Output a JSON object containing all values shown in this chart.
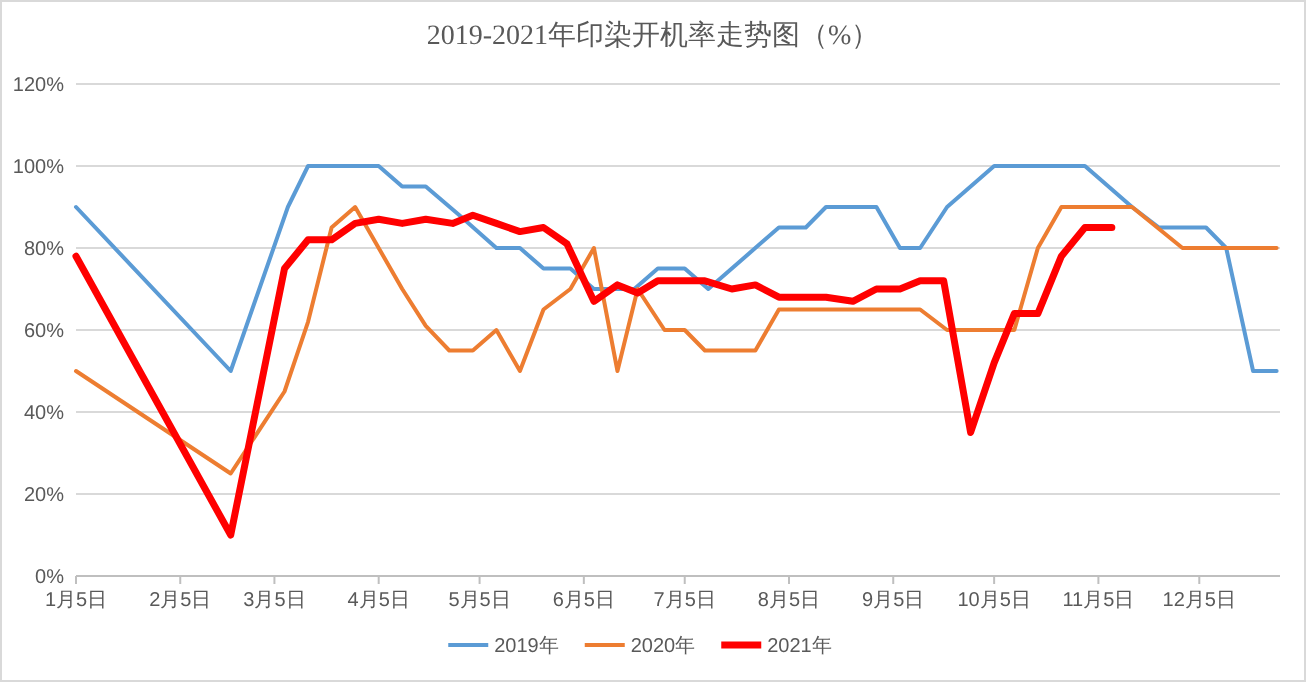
{
  "chart_data": {
    "type": "line",
    "title": "2019-2021年印染开机率走势图（%）",
    "xlim": [
      "--01-05",
      "--12-29"
    ],
    "xticks": [
      {
        "value": "--01-05",
        "label": "1月5日"
      },
      {
        "value": "--02-05",
        "label": "2月5日"
      },
      {
        "value": "--03-05",
        "label": "3月5日"
      },
      {
        "value": "--04-05",
        "label": "4月5日"
      },
      {
        "value": "--05-05",
        "label": "5月5日"
      },
      {
        "value": "--06-05",
        "label": "6月5日"
      },
      {
        "value": "--07-05",
        "label": "7月5日"
      },
      {
        "value": "--08-05",
        "label": "8月5日"
      },
      {
        "value": "--09-05",
        "label": "9月5日"
      },
      {
        "value": "--10-05",
        "label": "10月5日"
      },
      {
        "value": "--11-05",
        "label": "11月5日"
      },
      {
        "value": "--12-05",
        "label": "12月5日"
      }
    ],
    "ylim": [
      0,
      120
    ],
    "yticks": [
      {
        "value": 0,
        "label": "0%"
      },
      {
        "value": 20,
        "label": "20%"
      },
      {
        "value": 40,
        "label": "40%"
      },
      {
        "value": 60,
        "label": "60%"
      },
      {
        "value": 80,
        "label": "80%"
      },
      {
        "value": 100,
        "label": "100%"
      },
      {
        "value": 120,
        "label": "120%"
      }
    ],
    "grid": "y",
    "legend": "bottom",
    "line_style": "solid",
    "series": [
      {
        "name": "2019年",
        "color": "#5b9bd5",
        "x": [
          "--01-05",
          "--02-20",
          "--03-09",
          "--03-15",
          "--04-05",
          "--04-12",
          "--04-19",
          "--04-29",
          "--05-10",
          "--05-17",
          "--05-24",
          "--06-01",
          "--06-08",
          "--06-20",
          "--06-27",
          "--07-05",
          "--07-12",
          "--08-02",
          "--08-10",
          "--08-16",
          "--08-31",
          "--09-07",
          "--09-13",
          "--09-21",
          "--10-05",
          "--11-01",
          "--11-15",
          "--11-23",
          "--12-07",
          "--12-13",
          "--12-21",
          "--12-28"
        ],
        "values": [
          90,
          50,
          90,
          100,
          100,
          95,
          95,
          88,
          80,
          80,
          75,
          75,
          70,
          70,
          75,
          75,
          70,
          85,
          85,
          90,
          90,
          80,
          80,
          90,
          100,
          100,
          90,
          85,
          85,
          80,
          50,
          50
        ]
      },
      {
        "name": "2020年",
        "color": "#ed7d31",
        "x": [
          "--01-05",
          "--02-20",
          "--03-08",
          "--03-15",
          "--03-22",
          "--03-29",
          "--04-05",
          "--04-12",
          "--04-19",
          "--04-26",
          "--05-03",
          "--05-10",
          "--05-17",
          "--05-24",
          "--06-01",
          "--06-08",
          "--06-15",
          "--06-21",
          "--06-29",
          "--07-05",
          "--07-11",
          "--07-26",
          "--08-02",
          "--09-13",
          "--09-21",
          "--10-11",
          "--10-18",
          "--10-25",
          "--11-15",
          "--11-30",
          "--12-28"
        ],
        "values": [
          50,
          25,
          45,
          62,
          85,
          90,
          80,
          70,
          61,
          55,
          55,
          60,
          50,
          65,
          70,
          80,
          50,
          70,
          60,
          60,
          55,
          55,
          65,
          65,
          60,
          60,
          80,
          90,
          90,
          80,
          80
        ]
      },
      {
        "name": "2021年",
        "color": "#ff0000",
        "x": [
          "--01-05",
          "--02-20",
          "--03-08",
          "--03-15",
          "--03-22",
          "--03-29",
          "--04-05",
          "--04-12",
          "--04-19",
          "--04-27",
          "--05-03",
          "--05-10",
          "--05-17",
          "--05-24",
          "--05-31",
          "--06-08",
          "--06-15",
          "--06-21",
          "--06-27",
          "--07-11",
          "--07-19",
          "--07-26",
          "--08-02",
          "--08-16",
          "--08-24",
          "--08-31",
          "--09-07",
          "--09-13",
          "--09-20",
          "--09-28",
          "--10-05",
          "--10-11",
          "--10-18",
          "--10-25",
          "--11-01",
          "--11-09"
        ],
        "values": [
          78,
          10,
          75,
          82,
          82,
          86,
          87,
          86,
          87,
          86,
          88,
          86,
          84,
          85,
          81,
          67,
          71,
          69,
          72,
          72,
          70,
          71,
          68,
          68,
          67,
          70,
          70,
          72,
          72,
          35,
          52,
          64,
          64,
          78,
          85,
          85
        ]
      }
    ]
  }
}
